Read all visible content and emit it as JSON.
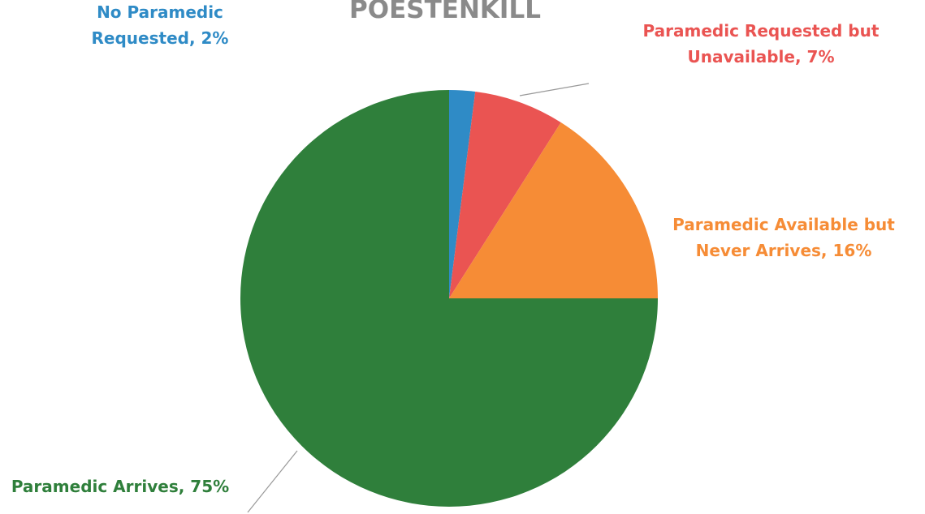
{
  "chart_data": {
    "type": "pie",
    "title": "POESTENKILL",
    "values": [
      2,
      7,
      16,
      75
    ],
    "value_labels": [
      "No Paramedic\nRequested, 2%",
      "Paramedic Requested but\nUnavailable, 7%",
      "Paramedic Available but\nNever Arrives, 16%",
      "Paramedic Arrives, 75%"
    ],
    "colors": [
      "#2f8bc6",
      "#ea5452",
      "#f68c36",
      "#2f7f3b"
    ]
  }
}
